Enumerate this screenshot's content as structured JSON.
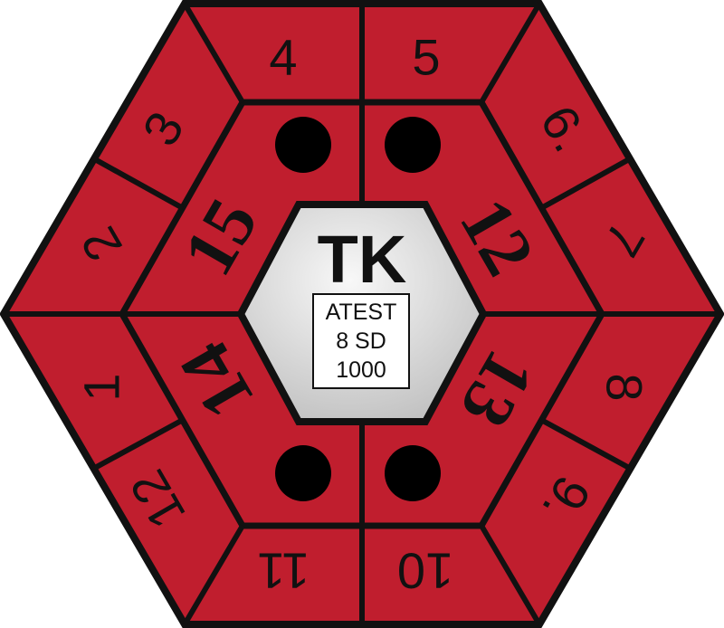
{
  "colors": {
    "segment_fill": "#c01e2e",
    "outline": "#111111",
    "center_light": "#f8f8f8",
    "center_dark": "#bdbdbd",
    "dot": "#000000"
  },
  "outer_numbers": [
    "4",
    "5",
    "6",
    "7",
    "8",
    "9",
    "10",
    "11",
    "12",
    "1",
    "2",
    "3"
  ],
  "outer_marked": [
    "6",
    "9"
  ],
  "inner_numbers": [
    "12",
    "13",
    "14",
    "15"
  ],
  "dot_count": 4,
  "center": {
    "code": "TK",
    "label_lines": [
      "ATEST",
      "8 SD",
      "1000"
    ]
  }
}
